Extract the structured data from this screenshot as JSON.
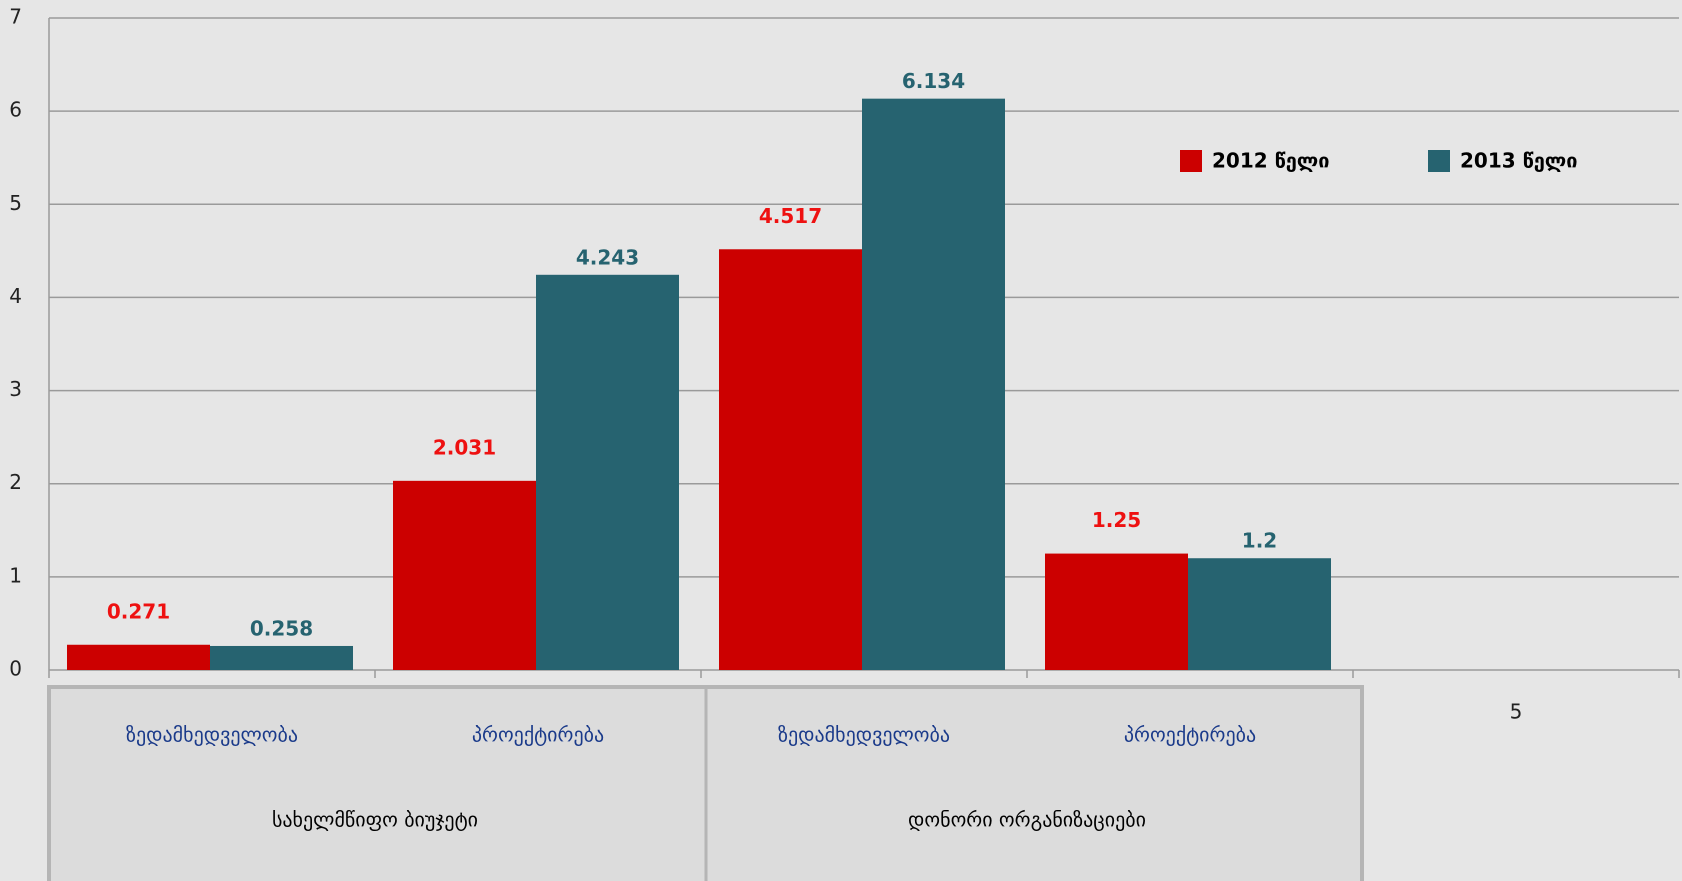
{
  "chart_data": {
    "type": "bar",
    "categories": [
      "ზედამხედველობა",
      "პროექტირება",
      "ზედამხედველობა",
      "პროექტირება",
      "5"
    ],
    "group_labels": [
      "სახელმწიფო   ბიუჯეტი",
      "დონორი ორგანიზაციები"
    ],
    "series": [
      {
        "name": "2012 წელი",
        "color": "#cc0000",
        "values": [
          0.271,
          2.031,
          4.517,
          1.25,
          null
        ]
      },
      {
        "name": "2013 წელი",
        "color": "#266370",
        "values": [
          0.258,
          4.243,
          6.134,
          1.2,
          null
        ]
      }
    ],
    "ylim": [
      0,
      7
    ],
    "yticks": [
      0,
      1,
      2,
      3,
      4,
      5,
      6,
      7
    ],
    "grid": true,
    "legend": "top-right"
  }
}
